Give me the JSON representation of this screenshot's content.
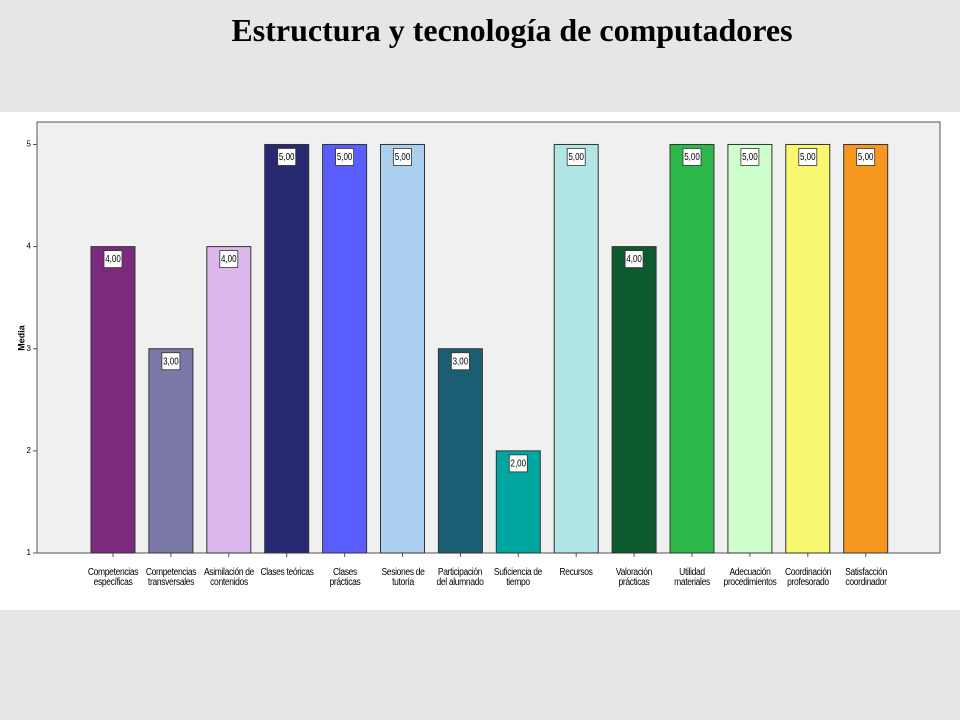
{
  "chart_data": {
    "type": "bar",
    "title": "Estructura y tecnología de computadores",
    "ylabel": "Media",
    "categories": [
      "Competencias\nespecíficas",
      "Competencias\ntransversales",
      "Asimilación de\ncontenidos",
      "Clases teóricas",
      "Clases\nprácticas",
      "Sesiones de\ntutoría",
      "Participación\ndel alumnado",
      "Suficiencia de\ntiempo",
      "Recursos",
      "Valoración\nprácticas",
      "Utilidad\nmateriales",
      "Adecuación\nprocedimientos",
      "Coordinación\nprofesorado",
      "Satisfacción\ncoordinador"
    ],
    "values": [
      4,
      3,
      4,
      5,
      5,
      5,
      3,
      2,
      5,
      4,
      5,
      5,
      5,
      5
    ],
    "value_labels": [
      "4,00",
      "3,00",
      "4,00",
      "5,00",
      "5,00",
      "5,00",
      "3,00",
      "2,00",
      "5,00",
      "4,00",
      "5,00",
      "5,00",
      "5,00",
      "5,00"
    ],
    "colors": [
      "#7b2a7e",
      "#7a78a6",
      "#dcb8ee",
      "#272a72",
      "#5b5eff",
      "#abcfee",
      "#1b5e73",
      "#00a6a0",
      "#b2e6e6",
      "#0c5a2e",
      "#2db84a",
      "#ccffcc",
      "#f8f870",
      "#f7981e"
    ],
    "ylim": [
      1,
      5.22
    ],
    "yticks": [
      1,
      2,
      3,
      4,
      5
    ],
    "grid": false
  }
}
